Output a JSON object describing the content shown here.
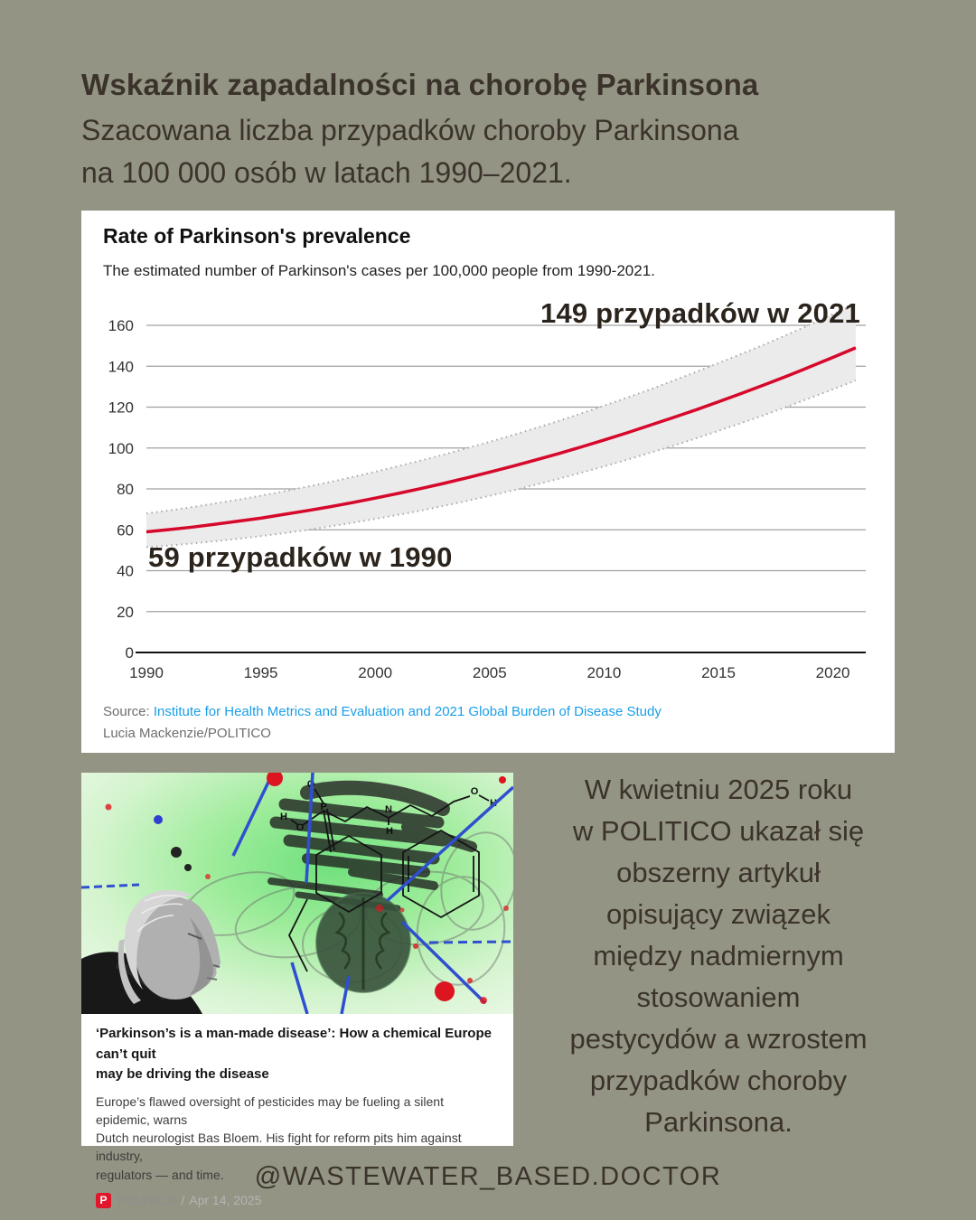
{
  "page": {
    "title": "Wskaźnik zapadalności na chorobę Parkinsona",
    "subtitle_lines": [
      "Szacowana liczba przypadków choroby Parkinsona",
      "na 100 000 osób w latach 1990–2021."
    ],
    "handle": "@WASTEWATER_BASED.DOCTOR",
    "background_color": "#939483",
    "text_color": "#3b332b"
  },
  "chart_card": {
    "title": "Rate of Parkinson's prevalence",
    "subtitle": "The estimated number of Parkinson's cases per 100,000 people from 1990-2021.",
    "annotation_2021": "149 przypadków w 2021",
    "annotation_1990": "59 przypadków w 1990",
    "source_prefix": "Source: ",
    "source_link": "Institute for Health Metrics and Evaluation and 2021 Global Burden of Disease Study",
    "credit": "Lucia Mackenzie/POLITICO",
    "link_color": "#1a9ee6"
  },
  "chart_data": {
    "type": "line",
    "title": "Rate of Parkinson's prevalence",
    "subtitle": "The estimated number of Parkinson's cases per 100,000 people from 1990-2021.",
    "xlabel": "",
    "ylabel": "",
    "ylim": [
      0,
      160
    ],
    "ytick_step": 20,
    "xticks": [
      1990,
      1995,
      2000,
      2005,
      2010,
      2015,
      2020
    ],
    "grid": true,
    "legend": false,
    "x": [
      1990,
      1991,
      1992,
      1993,
      1994,
      1995,
      1996,
      1997,
      1998,
      1999,
      2000,
      2001,
      2002,
      2003,
      2004,
      2005,
      2006,
      2007,
      2008,
      2009,
      2010,
      2011,
      2012,
      2013,
      2014,
      2015,
      2016,
      2017,
      2018,
      2019,
      2020,
      2021
    ],
    "series": [
      {
        "name": "Estimated Parkinson's cases per 100,000 people",
        "color": "#d6082b",
        "values": [
          59,
          60.1,
          61.3,
          62.7,
          64.2,
          65.7,
          67.5,
          69.3,
          71.2,
          73.3,
          75.5,
          77.8,
          80.2,
          82.7,
          85.4,
          88.2,
          91.1,
          94.1,
          97.2,
          100.5,
          103.9,
          107.4,
          111.1,
          114.8,
          118.6,
          122.6,
          126.7,
          130.9,
          135.2,
          139.7,
          144.3,
          149
        ]
      }
    ],
    "band": {
      "name": "uncertainty interval",
      "fill": "#ebebeb",
      "border": "#a9a9a9",
      "lower": [
        51.5,
        52.3,
        53.3,
        54.4,
        55.6,
        56.9,
        58.3,
        59.9,
        61.6,
        63.4,
        65.3,
        67.3,
        69.4,
        71.7,
        74.1,
        76.6,
        79.2,
        82,
        84.9,
        87.9,
        91,
        94.2,
        97.6,
        101,
        104.6,
        108.4,
        112.2,
        116.1,
        120.2,
        124.4,
        128.7,
        133
      ],
      "upper": [
        68,
        69.5,
        71.1,
        72.9,
        74.7,
        76.7,
        78.8,
        81,
        83.3,
        85.8,
        88.4,
        91.1,
        93.9,
        96.8,
        99.9,
        103,
        106.3,
        109.7,
        113.2,
        116.9,
        120.7,
        124.6,
        128.6,
        132.8,
        137.1,
        141.5,
        146,
        150.6,
        155.4,
        160.3,
        165.4,
        170.4
      ]
    },
    "annotations": [
      {
        "text": "59 przypadków w 1990",
        "x": 1990,
        "y": 59
      },
      {
        "text": "149 przypadków w 2021",
        "x": 2021,
        "y": 149
      }
    ]
  },
  "article_card": {
    "headline_lines": [
      "‘Parkinson’s is a man-made disease’: How a chemical Europe can’t quit",
      "may be driving the disease"
    ],
    "body_lines": [
      "Europe’s flawed oversight of pesticides may be fueling a silent epidemic, warns",
      "Dutch neurologist Bas Bloem. His fight for reform pits him against industry,",
      "regulators — and time."
    ],
    "brand_initial": "P",
    "brand": "POLITICO",
    "separator": "/",
    "date": "Apr 14, 2025",
    "brand_color": "#e0162b"
  },
  "collage": {
    "atom_labels": [
      "O",
      "H",
      "O",
      "P",
      "N",
      "H",
      "O",
      "H"
    ]
  },
  "commentary": {
    "lines": [
      "W kwietniu 2025 roku",
      "w POLITICO ukazał się",
      "obszerny artykuł",
      "opisujący związek",
      "między nadmiernym",
      "stosowaniem",
      "pestycydów a wzrostem",
      "przypadków choroby",
      "Parkinsona."
    ]
  }
}
